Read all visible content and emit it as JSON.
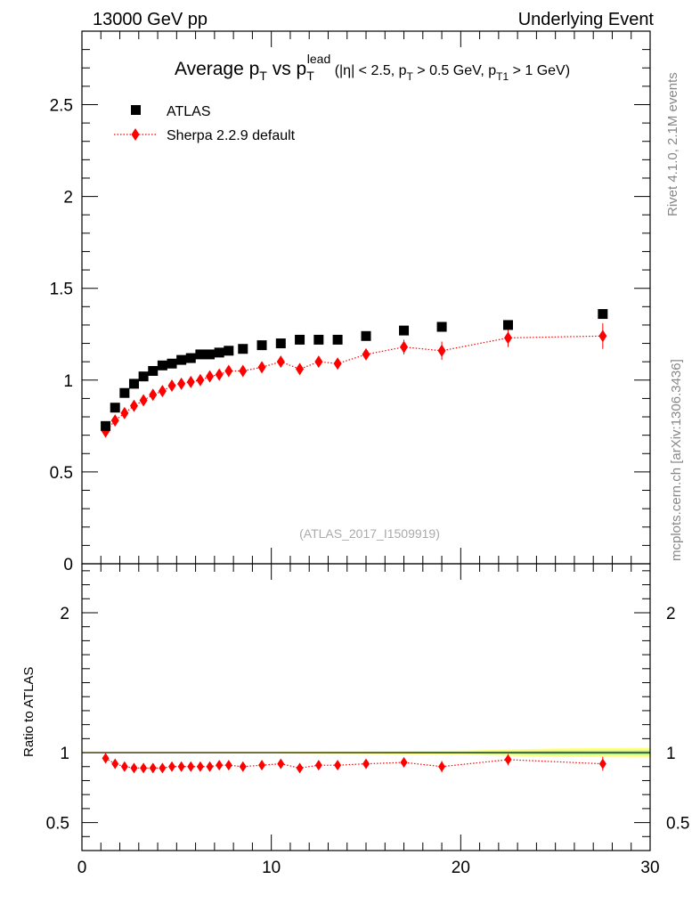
{
  "header": {
    "left": "13000 GeV pp",
    "right": "Underlying Event"
  },
  "side_labels": {
    "rivet": "Rivet 4.1.0,  2.1M events",
    "mcplots": "mcplots.cern.ch [arXiv:1306.3436]"
  },
  "chart_data": [
    {
      "type": "scatter",
      "panel": "main",
      "title": "Average p_T vs p_T^lead (|η| < 2.5, p_T > 0.5 GeV, p_T1 > 1 GeV)",
      "title_parts": {
        "a": "Average p",
        "a_sub": "T",
        "b": " vs p",
        "b_sub": "T",
        "b_sup": "lead",
        "c": " (|η| < 2.5, p",
        "c_sub": "T",
        "d": " > 0.5 GeV, p",
        "d_sub": "T1",
        "e": " > 1 GeV)"
      },
      "analysis_tag": "(ATLAS_2017_I1509919)",
      "xlim": [
        0,
        30
      ],
      "ylim": [
        0,
        2.9
      ],
      "y_ticks": [
        0,
        0.5,
        1,
        1.5,
        2,
        2.5
      ],
      "y_tick_labels": [
        "0",
        "0.5",
        "1",
        "1.5",
        "2",
        "2.5"
      ],
      "series": [
        {
          "name": "ATLAS",
          "marker": "square",
          "color": "#000000",
          "x": [
            1.25,
            1.75,
            2.25,
            2.75,
            3.25,
            3.75,
            4.25,
            4.75,
            5.25,
            5.75,
            6.25,
            6.75,
            7.25,
            7.75,
            8.5,
            9.5,
            10.5,
            11.5,
            12.5,
            13.5,
            15.0,
            17.0,
            19.0,
            22.5,
            27.5
          ],
          "y": [
            0.75,
            0.85,
            0.93,
            0.98,
            1.02,
            1.05,
            1.08,
            1.09,
            1.11,
            1.12,
            1.14,
            1.14,
            1.15,
            1.16,
            1.17,
            1.19,
            1.2,
            1.22,
            1.22,
            1.22,
            1.24,
            1.27,
            1.29,
            1.3,
            1.36
          ],
          "err": [
            0.005,
            0.005,
            0.005,
            0.005,
            0.005,
            0.005,
            0.005,
            0.005,
            0.005,
            0.005,
            0.005,
            0.005,
            0.005,
            0.005,
            0.005,
            0.005,
            0.005,
            0.005,
            0.005,
            0.005,
            0.005,
            0.005,
            0.005,
            0.005,
            0.01
          ]
        },
        {
          "name": "Sherpa 2.2.9 default",
          "marker": "diamond",
          "color": "#ff0000",
          "line": "dotted",
          "x": [
            1.25,
            1.75,
            2.25,
            2.75,
            3.25,
            3.75,
            4.25,
            4.75,
            5.25,
            5.75,
            6.25,
            6.75,
            7.25,
            7.75,
            8.5,
            9.5,
            10.5,
            11.5,
            12.5,
            13.5,
            15.0,
            17.0,
            19.0,
            22.5,
            27.5
          ],
          "y": [
            0.72,
            0.78,
            0.82,
            0.86,
            0.89,
            0.92,
            0.94,
            0.97,
            0.98,
            0.99,
            1.0,
            1.02,
            1.03,
            1.05,
            1.05,
            1.07,
            1.1,
            1.06,
            1.1,
            1.09,
            1.14,
            1.18,
            1.16,
            1.23,
            1.24
          ],
          "err": [
            0.01,
            0.01,
            0.01,
            0.01,
            0.01,
            0.01,
            0.01,
            0.01,
            0.01,
            0.01,
            0.01,
            0.01,
            0.01,
            0.01,
            0.015,
            0.015,
            0.02,
            0.02,
            0.02,
            0.03,
            0.03,
            0.04,
            0.05,
            0.05,
            0.07
          ]
        }
      ]
    },
    {
      "type": "scatter",
      "panel": "ratio",
      "ylabel": "Ratio to ATLAS",
      "xlabel": "",
      "xlim": [
        0,
        30
      ],
      "ylim": [
        0.3,
        2.35
      ],
      "x_ticks": [
        0,
        10,
        20,
        30
      ],
      "x_tick_labels": [
        "0",
        "10",
        "20",
        "30"
      ],
      "y_ticks": [
        0.5,
        1,
        2
      ],
      "y_tick_labels": [
        "0.5",
        "1",
        "2"
      ],
      "reference": 1,
      "series": [
        {
          "name": "Sherpa 2.2.9 default / ATLAS",
          "marker": "diamond",
          "color": "#ff0000",
          "line": "dotted",
          "x": [
            1.25,
            1.75,
            2.25,
            2.75,
            3.25,
            3.75,
            4.25,
            4.75,
            5.25,
            5.75,
            6.25,
            6.75,
            7.25,
            7.75,
            8.5,
            9.5,
            10.5,
            11.5,
            12.5,
            13.5,
            15.0,
            17.0,
            19.0,
            22.5,
            27.5
          ],
          "y": [
            0.96,
            0.92,
            0.9,
            0.89,
            0.89,
            0.89,
            0.89,
            0.9,
            0.9,
            0.9,
            0.9,
            0.9,
            0.91,
            0.91,
            0.9,
            0.91,
            0.92,
            0.89,
            0.91,
            0.91,
            0.92,
            0.93,
            0.9,
            0.95,
            0.92
          ],
          "err": [
            0.01,
            0.01,
            0.01,
            0.01,
            0.01,
            0.01,
            0.01,
            0.01,
            0.01,
            0.01,
            0.01,
            0.01,
            0.01,
            0.01,
            0.015,
            0.015,
            0.02,
            0.02,
            0.02,
            0.025,
            0.025,
            0.03,
            0.04,
            0.04,
            0.05
          ]
        }
      ],
      "uncertainty_band": {
        "x": [
          0,
          10,
          15,
          20,
          25,
          30
        ],
        "half_width": [
          0.005,
          0.006,
          0.01,
          0.015,
          0.03,
          0.035
        ],
        "color": "#ffff66",
        "inner_color": "#99ee99"
      }
    }
  ]
}
